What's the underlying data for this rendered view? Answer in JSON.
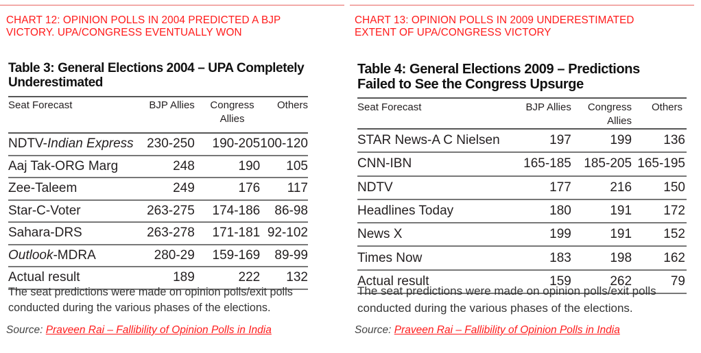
{
  "chart12": {
    "title_line1": "CHART 12: OPINION POLLS IN 2004 PREDICTED A BJP",
    "title_line2": "VICTORY. UPA/CONGRESS EVENTUALLY WON",
    "table_title_line1": "Table 3: General Elections 2004 – UPA Completely",
    "table_title_line2": "Underestimated",
    "headers": {
      "forecast": "Seat Forecast",
      "bjp": "BJP Allies",
      "congress_line1": "Congress",
      "congress_line2": "Allies",
      "others": "Others"
    },
    "rows": [
      {
        "name_prefix": "NDTV-",
        "name_italic": "Indian Express",
        "name_suffix": "",
        "bjp": "230-250",
        "congress": "190-205",
        "others": "100-120"
      },
      {
        "name_prefix": "Aaj Tak-ORG Marg",
        "name_italic": "",
        "name_suffix": "",
        "bjp": "248",
        "congress": "190",
        "others": "105"
      },
      {
        "name_prefix": "Zee-Taleem",
        "name_italic": "",
        "name_suffix": "",
        "bjp": "249",
        "congress": "176",
        "others": "117"
      },
      {
        "name_prefix": "Star-C-Voter",
        "name_italic": "",
        "name_suffix": "",
        "bjp": "263-275",
        "congress": "174-186",
        "others": "86-98"
      },
      {
        "name_prefix": "Sahara-DRS",
        "name_italic": "",
        "name_suffix": "",
        "bjp": "263-278",
        "congress": "171-181",
        "others": "92-102"
      },
      {
        "name_prefix": "",
        "name_italic": "Outlook",
        "name_suffix": "-MDRA",
        "bjp": "280-29",
        "congress": "159-169",
        "others": "89-99"
      },
      {
        "name_prefix": "Actual result",
        "name_italic": "",
        "name_suffix": "",
        "bjp": "189",
        "congress": "222",
        "others": "132"
      }
    ],
    "note_line1": "The seat predictions were made on opinion polls/exit polls",
    "note_line2": "conducted during the various phases of the elections.",
    "source_label": "Source:",
    "source_link": "Praveen Rai – Fallibility of Opinion Polls in India"
  },
  "chart13": {
    "title_line1": "CHART 13: OPINION POLLS IN 2009 UNDERESTIMATED",
    "title_line2": "EXTENT OF UPA/CONGRESS VICTORY",
    "table_title_line1": "Table 4: General Elections 2009 – Predictions",
    "table_title_line2": "Failed to See the Congress Upsurge",
    "headers": {
      "forecast": "Seat Forecast",
      "bjp": "BJP Allies",
      "congress": "Congress Allies",
      "others": "Others"
    },
    "rows": [
      {
        "name": "STAR News-A C Nielsen",
        "bjp": "197",
        "congress": "199",
        "others": "136"
      },
      {
        "name": "CNN-IBN",
        "bjp": "165-185",
        "congress": "185-205",
        "others": "165-195"
      },
      {
        "name": "NDTV",
        "bjp": "177",
        "congress": "216",
        "others": "150"
      },
      {
        "name": "Headlines Today",
        "bjp": "180",
        "congress": "191",
        "others": "172"
      },
      {
        "name": "News X",
        "bjp": "199",
        "congress": "191",
        "others": "152"
      },
      {
        "name": "Times Now",
        "bjp": "183",
        "congress": "198",
        "others": "162"
      },
      {
        "name": "Actual result",
        "bjp": "159",
        "congress": "262",
        "others": "79"
      }
    ],
    "note_line1": "The seat predictions were made on opinion polls/exit polls",
    "note_line2": "conducted during the various phases of the elections.",
    "source_label": "Source:",
    "source_link": "Praveen Rai – Fallibility of Opinion Polls in India"
  },
  "colors": {
    "accent_red": "#ff1a1a",
    "rule_red": "#e8625f",
    "text_dark": "#231f20"
  }
}
